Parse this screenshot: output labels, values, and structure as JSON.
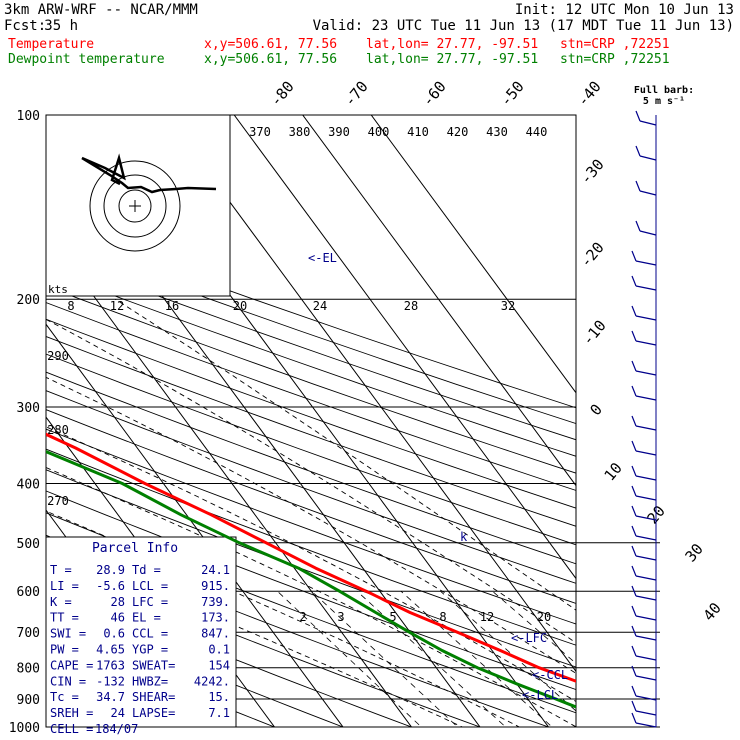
{
  "header": {
    "model": "3km ARW-WRF -- NCAR/MMM",
    "init": "Init: 12 UTC Mon 10 Jun 13",
    "fcst_label": "Fcst:",
    "fcst_value": "35 h",
    "valid": "Valid: 23 UTC Tue 11 Jun 13 (17 MDT Tue 11 Jun 13)",
    "temp_label": "Temperature",
    "dew_label": "Dewpoint temperature",
    "xy": "x,y=506.61, 77.56",
    "latlon": "lat,lon= 27.77, -97.51",
    "stn": "stn=CRP ,72251",
    "barb_title": "Full barb:",
    "barb_unit": "5 m s⁻¹",
    "hodo_units": "kts"
  },
  "colors": {
    "temperature": "#ff0000",
    "dewpoint": "#008000",
    "panel": "#00008b"
  },
  "parcel_info": {
    "title": "Parcel Info",
    "rows": [
      [
        "T  =",
        "28.9",
        "Td =",
        "24.1"
      ],
      [
        "LI =",
        "-5.6",
        "LCL =",
        "915."
      ],
      [
        "K  =",
        "28",
        "LFC =",
        "739."
      ],
      [
        "TT =",
        "46",
        "EL  =",
        "173."
      ],
      [
        "SWI =",
        "0.6",
        "CCL =",
        "847."
      ],
      [
        "PW =",
        "4.65",
        "YGP =",
        "0.1"
      ],
      [
        "CAPE =",
        "1763",
        "SWEAT=",
        "154"
      ],
      [
        "CIN =",
        "-132",
        "HWBZ=",
        "4242."
      ],
      [
        "Tc =",
        "34.7",
        "SHEAR=",
        "15."
      ],
      [
        "SREH =",
        "24",
        "LAPSE=",
        "7.1"
      ],
      [
        "CELL =",
        "184/07",
        "",
        ""
      ]
    ]
  },
  "level_labels": {
    "el": "<-EL",
    "lfc": "<-LFC",
    "ccl": "<-CCL",
    "lcl": "<-LCL"
  },
  "chart_data": {
    "type": "line",
    "title": "Skew-T log-p sounding",
    "pressure_levels": [
      100,
      200,
      300,
      400,
      500,
      600,
      700,
      800,
      900,
      1000
    ],
    "pressure_labels": [
      "100",
      "200",
      "300",
      "400",
      "500",
      "600",
      "700",
      "800",
      "900",
      "1000"
    ],
    "isotherm_labels": [
      "-80",
      "-70",
      "-60",
      "-50",
      "-40",
      "-30",
      "-20",
      "-10",
      "0",
      "10",
      "20",
      "30",
      "40"
    ],
    "theta_labels": [
      "370",
      "380",
      "390",
      "400",
      "410",
      "420",
      "430",
      "440"
    ],
    "theta_left_labels": [
      "290",
      "280",
      "270"
    ],
    "hodograph_labels": [
      "8",
      "12",
      "16",
      "20",
      "24",
      "28",
      "32"
    ],
    "mixing_ratio_labels": [
      "2",
      "3",
      "5",
      "8",
      "12",
      "20"
    ],
    "series": [
      {
        "name": "Temperature",
        "p": [
          1000,
          975,
          950,
          925,
          900,
          850,
          800,
          750,
          700,
          650,
          600,
          550,
          500,
          450,
          400,
          350,
          300,
          250,
          200,
          175,
          150,
          125,
          100
        ],
        "t": [
          30.3,
          26.3,
          25.6,
          24.5,
          23.7,
          19.7,
          15.0,
          11.2,
          6.9,
          2.1,
          -2.0,
          -6.9,
          -11.4,
          -16.4,
          -22.7,
          -29.0,
          -37.5,
          -46.2,
          -57.4,
          -63.0,
          -68.8,
          -70.7,
          -71.0
        ]
      },
      {
        "name": "Dewpoint temperature",
        "p": [
          1000,
          975,
          950,
          925,
          900,
          850,
          800,
          750,
          700,
          650,
          600,
          550,
          500,
          450,
          400,
          350,
          300,
          250,
          200,
          175,
          150,
          125,
          100
        ],
        "t": [
          25.3,
          23.4,
          19.0,
          16.0,
          14.1,
          10.0,
          6.0,
          2.7,
          -0.1,
          -2.9,
          -5.9,
          -9.4,
          -15.3,
          -20.8,
          -26.0,
          -34.6,
          -53.6,
          -60.0,
          -72.0,
          -76.2,
          -84.5,
          -88.4,
          -87.5
        ]
      }
    ]
  }
}
